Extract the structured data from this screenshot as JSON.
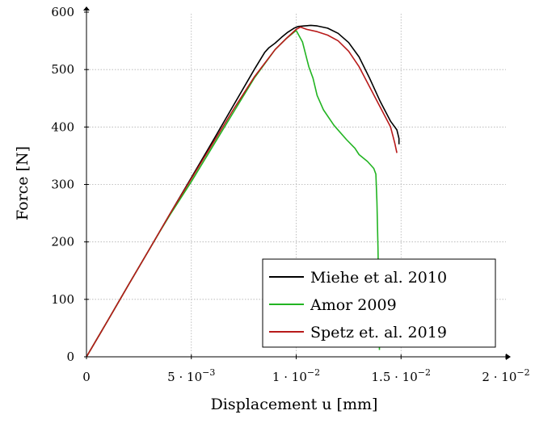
{
  "chart_data": {
    "type": "line",
    "title": "",
    "xlabel": "Displacement u [mm]",
    "ylabel": "Force [N]",
    "xlim": [
      0,
      0.02
    ],
    "ylim": [
      0,
      600
    ],
    "grid": true,
    "legend_position": "bottom-right",
    "xticks": [
      {
        "value": 0,
        "base": "0",
        "exp": ""
      },
      {
        "value": 0.005,
        "base": "5 · 10",
        "exp": "−3"
      },
      {
        "value": 0.01,
        "base": "1 · 10",
        "exp": "−2"
      },
      {
        "value": 0.015,
        "base": "1.5 · 10",
        "exp": "−2"
      },
      {
        "value": 0.02,
        "base": "2 · 10",
        "exp": "−2"
      }
    ],
    "yticks": [
      {
        "value": 0,
        "label": "0"
      },
      {
        "value": 100,
        "label": "100"
      },
      {
        "value": 200,
        "label": "200"
      },
      {
        "value": 300,
        "label": "300"
      },
      {
        "value": 400,
        "label": "400"
      },
      {
        "value": 500,
        "label": "500"
      },
      {
        "value": 600,
        "label": "600"
      }
    ],
    "series": [
      {
        "name": "Miehe et al. 2010",
        "color": "#000000",
        "points": [
          [
            0,
            0
          ],
          [
            0.001,
            62
          ],
          [
            0.002,
            125
          ],
          [
            0.003,
            187
          ],
          [
            0.004,
            250
          ],
          [
            0.005,
            312
          ],
          [
            0.006,
            374
          ],
          [
            0.007,
            437
          ],
          [
            0.008,
            500
          ],
          [
            0.0085,
            530
          ],
          [
            0.0087,
            538
          ],
          [
            0.009,
            546
          ],
          [
            0.0093,
            556
          ],
          [
            0.0096,
            565
          ],
          [
            0.0099,
            572
          ],
          [
            0.0101,
            575
          ],
          [
            0.0104,
            576
          ],
          [
            0.0107,
            577
          ],
          [
            0.011,
            576
          ],
          [
            0.0115,
            572
          ],
          [
            0.012,
            563
          ],
          [
            0.0125,
            547
          ],
          [
            0.013,
            522
          ],
          [
            0.0135,
            485
          ],
          [
            0.014,
            445
          ],
          [
            0.0145,
            410
          ],
          [
            0.0148,
            395
          ],
          [
            0.0149,
            380
          ],
          [
            0.0149,
            370
          ]
        ]
      },
      {
        "name": "Amor 2009",
        "color": "#22b422",
        "points": [
          [
            0,
            0
          ],
          [
            0.001,
            62
          ],
          [
            0.002,
            125
          ],
          [
            0.003,
            187
          ],
          [
            0.0035,
            218
          ],
          [
            0.004,
            248
          ],
          [
            0.005,
            305
          ],
          [
            0.006,
            365
          ],
          [
            0.007,
            425
          ],
          [
            0.008,
            485
          ],
          [
            0.009,
            535
          ],
          [
            0.0095,
            553
          ],
          [
            0.01,
            568
          ],
          [
            0.0103,
            548
          ],
          [
            0.0106,
            505
          ],
          [
            0.0108,
            485
          ],
          [
            0.011,
            455
          ],
          [
            0.0113,
            430
          ],
          [
            0.0118,
            403
          ],
          [
            0.0124,
            378
          ],
          [
            0.0128,
            363
          ],
          [
            0.013,
            352
          ],
          [
            0.0134,
            340
          ],
          [
            0.0137,
            328
          ],
          [
            0.0138,
            318
          ],
          [
            0.01385,
            270
          ],
          [
            0.0139,
            190
          ],
          [
            0.01393,
            120
          ],
          [
            0.01396,
            60
          ],
          [
            0.01397,
            12
          ]
        ]
      },
      {
        "name": "Spetz et. al. 2019",
        "color": "#b81a1a",
        "points": [
          [
            0,
            0
          ],
          [
            0.001,
            62
          ],
          [
            0.002,
            125
          ],
          [
            0.003,
            187
          ],
          [
            0.004,
            250
          ],
          [
            0.005,
            310
          ],
          [
            0.006,
            370
          ],
          [
            0.007,
            430
          ],
          [
            0.008,
            487
          ],
          [
            0.009,
            535
          ],
          [
            0.0095,
            553
          ],
          [
            0.01,
            570
          ],
          [
            0.0102,
            574
          ],
          [
            0.0105,
            570
          ],
          [
            0.011,
            566
          ],
          [
            0.0115,
            560
          ],
          [
            0.012,
            550
          ],
          [
            0.0125,
            532
          ],
          [
            0.013,
            505
          ],
          [
            0.0135,
            470
          ],
          [
            0.014,
            435
          ],
          [
            0.0145,
            400
          ],
          [
            0.0147,
            372
          ],
          [
            0.0148,
            355
          ]
        ]
      }
    ]
  }
}
